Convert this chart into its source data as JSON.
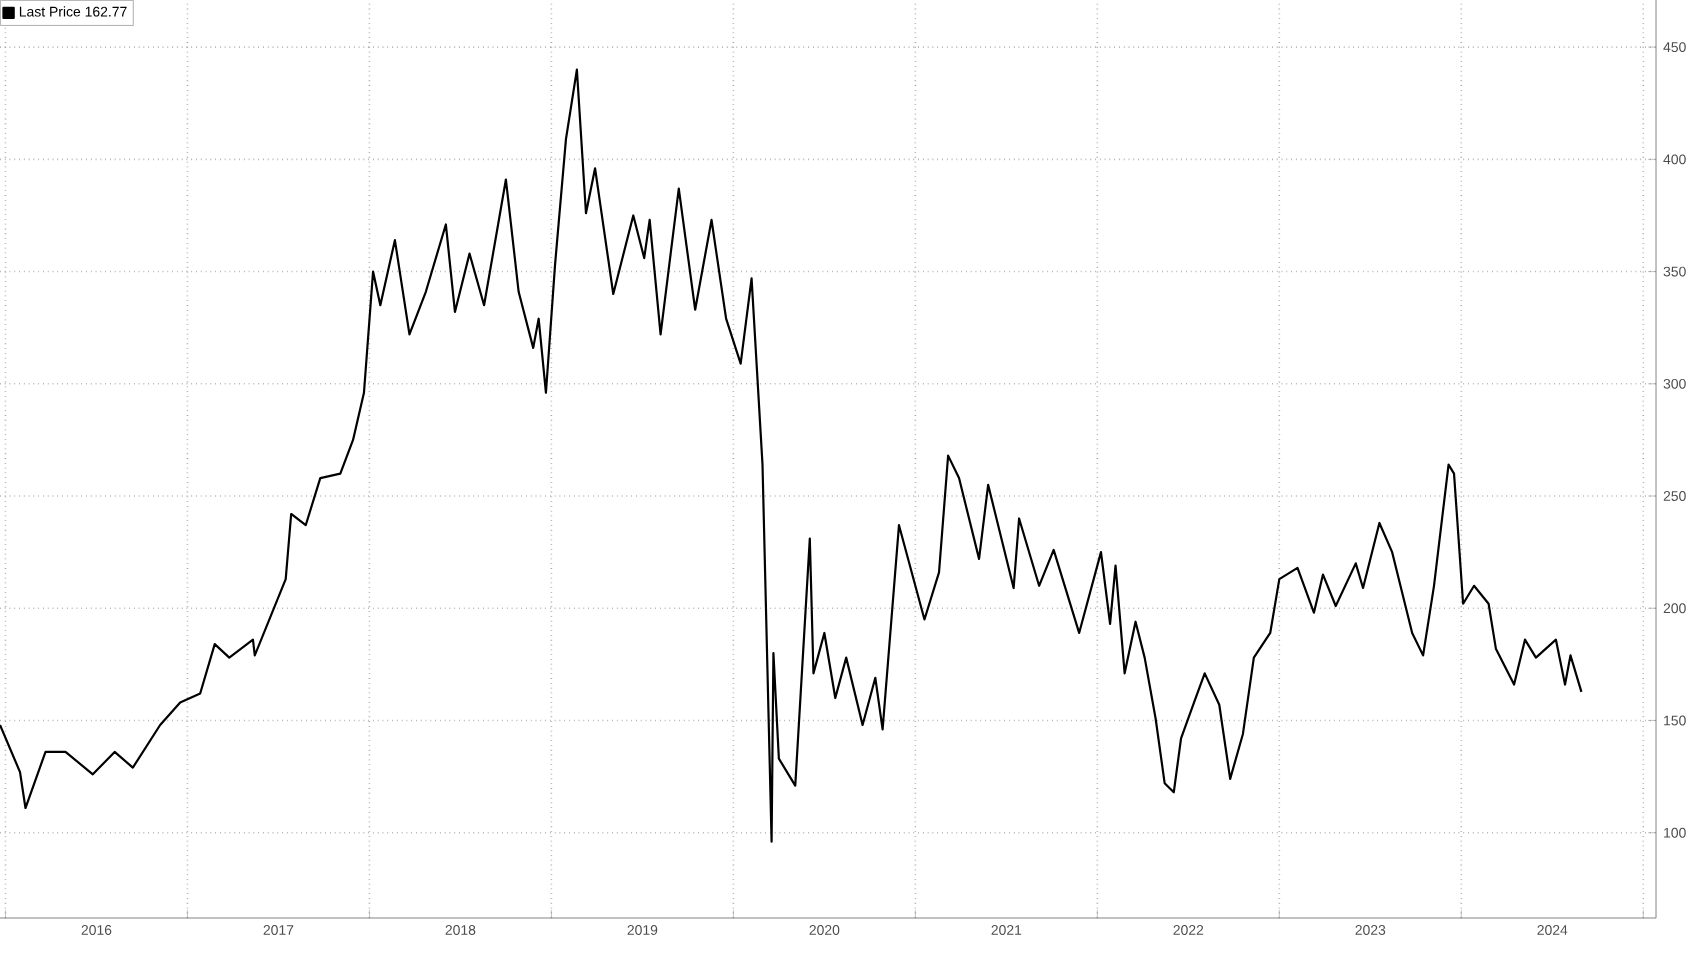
{
  "chart_data": {
    "type": "line",
    "x": [
      2015.97,
      2016.08,
      2016.11,
      2016.22,
      2016.33,
      2016.48,
      2016.6,
      2016.7,
      2016.85,
      2016.96,
      2017.07,
      2017.15,
      2017.23,
      2017.36,
      2017.37,
      2017.54,
      2017.57,
      2017.65,
      2017.73,
      2017.84,
      2017.91,
      2017.97,
      2018.02,
      2018.06,
      2018.14,
      2018.22,
      2018.31,
      2018.42,
      2018.47,
      2018.55,
      2018.63,
      2018.75,
      2018.82,
      2018.9,
      2018.93,
      2018.97,
      2019.02,
      2019.08,
      2019.14,
      2019.19,
      2019.24,
      2019.34,
      2019.45,
      2019.51,
      2019.54,
      2019.6,
      2019.7,
      2019.79,
      2019.88,
      2019.96,
      2020.04,
      2020.1,
      2020.16,
      2020.21,
      2020.22,
      2020.25,
      2020.34,
      2020.42,
      2020.44,
      2020.5,
      2020.56,
      2020.62,
      2020.71,
      2020.78,
      2020.82,
      2020.91,
      2021.05,
      2021.13,
      2021.18,
      2021.24,
      2021.35,
      2021.4,
      2021.54,
      2021.57,
      2021.68,
      2021.76,
      2021.9,
      2022.02,
      2022.07,
      2022.1,
      2022.15,
      2022.21,
      2022.26,
      2022.32,
      2022.37,
      2022.42,
      2022.46,
      2022.54,
      2022.59,
      2022.67,
      2022.73,
      2022.8,
      2022.86,
      2022.95,
      2023.0,
      2023.1,
      2023.19,
      2023.24,
      2023.31,
      2023.42,
      2023.46,
      2023.55,
      2023.62,
      2023.73,
      2023.79,
      2023.85,
      2023.93,
      2023.96,
      2024.01,
      2024.07,
      2024.15,
      2024.19,
      2024.29,
      2024.35,
      2024.41,
      2024.52,
      2024.57,
      2024.6,
      2024.66
    ],
    "series": [
      {
        "name": "Last Price 162.77",
        "color": "#000000",
        "values": [
          148,
          127,
          111,
          136,
          136,
          126,
          136,
          129,
          148,
          158,
          162,
          184,
          178,
          186,
          179,
          213,
          242,
          237,
          258,
          260,
          275,
          296,
          350,
          335,
          364,
          322,
          341,
          371,
          332,
          358,
          335,
          391,
          341,
          316,
          329,
          296,
          353,
          409,
          440,
          376,
          396,
          340,
          375,
          356,
          373,
          322,
          387,
          333,
          373,
          329,
          309,
          347,
          264,
          96,
          180,
          133,
          121,
          231,
          171,
          189,
          160,
          178,
          148,
          169,
          146,
          237,
          195,
          216,
          268,
          258,
          222,
          255,
          209,
          240,
          210,
          226,
          189,
          225,
          193,
          219,
          171,
          194,
          178,
          151,
          122,
          118,
          142,
          160,
          171,
          157,
          124,
          144,
          178,
          189,
          213,
          218,
          198,
          215,
          201,
          220,
          209,
          238,
          225,
          189,
          179,
          210,
          264,
          260,
          202,
          210,
          202,
          182,
          166,
          186,
          178,
          186,
          166,
          179,
          162.77
        ]
      }
    ],
    "xlim": [
      2015.97,
      2025.07
    ],
    "xticks": [
      {
        "value": 2016,
        "label": null
      },
      {
        "value": 2016.5,
        "label": "2016"
      },
      {
        "value": 2017,
        "label": null
      },
      {
        "value": 2017.5,
        "label": "2017"
      },
      {
        "value": 2018,
        "label": null
      },
      {
        "value": 2018.5,
        "label": "2018"
      },
      {
        "value": 2019,
        "label": null
      },
      {
        "value": 2019.5,
        "label": "2019"
      },
      {
        "value": 2020,
        "label": null
      },
      {
        "value": 2020.5,
        "label": "2020"
      },
      {
        "value": 2021,
        "label": null
      },
      {
        "value": 2021.5,
        "label": "2021"
      },
      {
        "value": 2022,
        "label": null
      },
      {
        "value": 2022.5,
        "label": "2022"
      },
      {
        "value": 2023,
        "label": null
      },
      {
        "value": 2023.5,
        "label": "2023"
      },
      {
        "value": 2024,
        "label": null
      },
      {
        "value": 2024.5,
        "label": "2024"
      },
      {
        "value": 2025,
        "label": null
      }
    ],
    "ylim": [
      62,
      471
    ],
    "yticks": [
      100,
      150,
      200,
      250,
      300,
      350,
      400,
      450
    ],
    "grid": true,
    "legend": "top left",
    "line_style": "solid"
  }
}
